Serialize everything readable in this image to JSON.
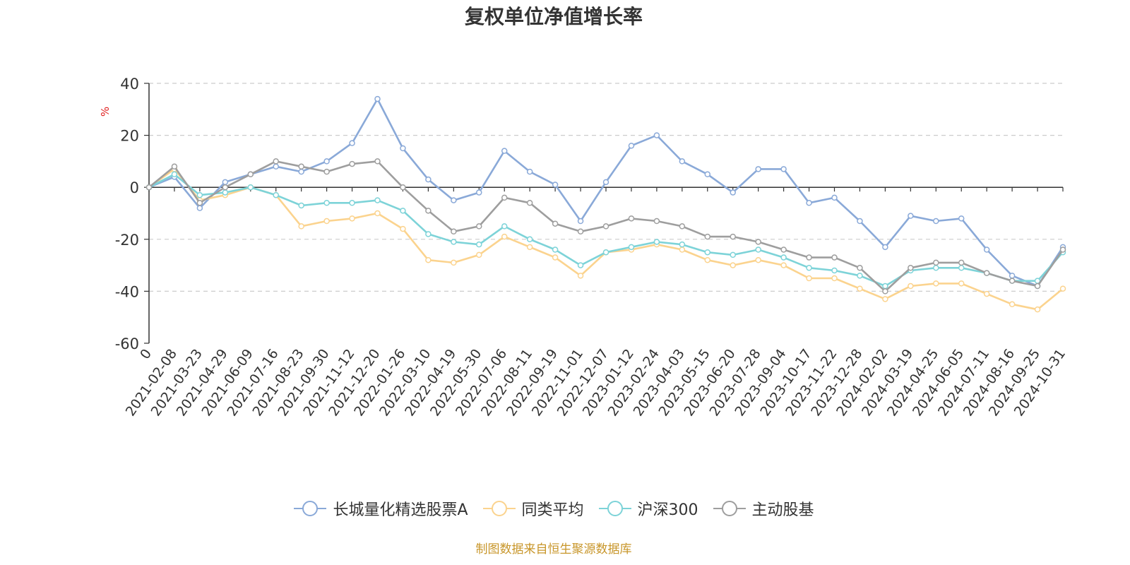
{
  "title": "复权单位净值增长率",
  "source": "制图数据来自恒生聚源数据库",
  "chart_data": {
    "type": "line",
    "title": "复权单位净值增长率",
    "ylabel": "%",
    "ylim": [
      -60,
      40
    ],
    "yticks": [
      40,
      20,
      0,
      -20,
      -40,
      -60
    ],
    "grid": true,
    "legend_position": "bottom",
    "x_tick_labels": [
      "0",
      "2021-02-08",
      "2021-03-23",
      "2021-04-29",
      "2021-06-09",
      "2021-07-16",
      "2021-08-23",
      "2021-09-30",
      "2021-11-12",
      "2021-12-20",
      "2022-01-26",
      "2022-03-10",
      "2022-04-19",
      "2022-05-30",
      "2022-07-06",
      "2022-08-11",
      "2022-09-19",
      "2022-11-01",
      "2022-12-07",
      "2023-01-12",
      "2023-02-24",
      "2023-04-03",
      "2023-05-15",
      "2023-06-20",
      "2023-07-28",
      "2023-09-04",
      "2023-10-17",
      "2023-11-22",
      "2023-12-28",
      "2024-02-02",
      "2024-03-19",
      "2024-04-25",
      "2024-06-05",
      "2024-07-11",
      "2024-08-16",
      "2024-09-25",
      "2024-10-31"
    ],
    "series": [
      {
        "name": "长城量化精选股票A",
        "color": "#8aa9d8",
        "values": [
          0,
          4,
          -8,
          2,
          5,
          8,
          6,
          10,
          17,
          34,
          15,
          3,
          -5,
          -2,
          14,
          6,
          1,
          -13,
          2,
          16,
          20,
          10,
          5,
          -2,
          7,
          7,
          -6,
          -4,
          -13,
          -23,
          -11,
          -13,
          -12,
          -24,
          -34,
          -38,
          -23
        ]
      },
      {
        "name": "同类平均",
        "color": "#fbd38e",
        "values": [
          0,
          7,
          -5,
          -3,
          0,
          -3,
          -15,
          -13,
          -12,
          -10,
          -16,
          -28,
          -29,
          -26,
          -19,
          -23,
          -27,
          -34,
          -25,
          -24,
          -22,
          -24,
          -28,
          -30,
          -28,
          -30,
          -35,
          -35,
          -39,
          -43,
          -38,
          -37,
          -37,
          -41,
          -45,
          -47,
          -39
        ]
      },
      {
        "name": "沪深300",
        "color": "#7dd3d8",
        "values": [
          0,
          5,
          -3,
          -2,
          0,
          -3,
          -7,
          -6,
          -6,
          -5,
          -9,
          -18,
          -21,
          -22,
          -15,
          -20,
          -24,
          -30,
          -25,
          -23,
          -21,
          -22,
          -25,
          -26,
          -24,
          -27,
          -31,
          -32,
          -34,
          -38,
          -32,
          -31,
          -31,
          -33,
          -36,
          -36,
          -25
        ]
      },
      {
        "name": "主动股基",
        "color": "#9e9e9e",
        "values": [
          0,
          8,
          -6,
          0,
          5,
          10,
          8,
          6,
          9,
          10,
          0,
          -9,
          -17,
          -15,
          -4,
          -6,
          -14,
          -17,
          -15,
          -12,
          -13,
          -15,
          -19,
          -19,
          -21,
          -24,
          -27,
          -27,
          -31,
          -40,
          -31,
          -29,
          -29,
          -33,
          -36,
          -38,
          -24
        ]
      }
    ]
  }
}
